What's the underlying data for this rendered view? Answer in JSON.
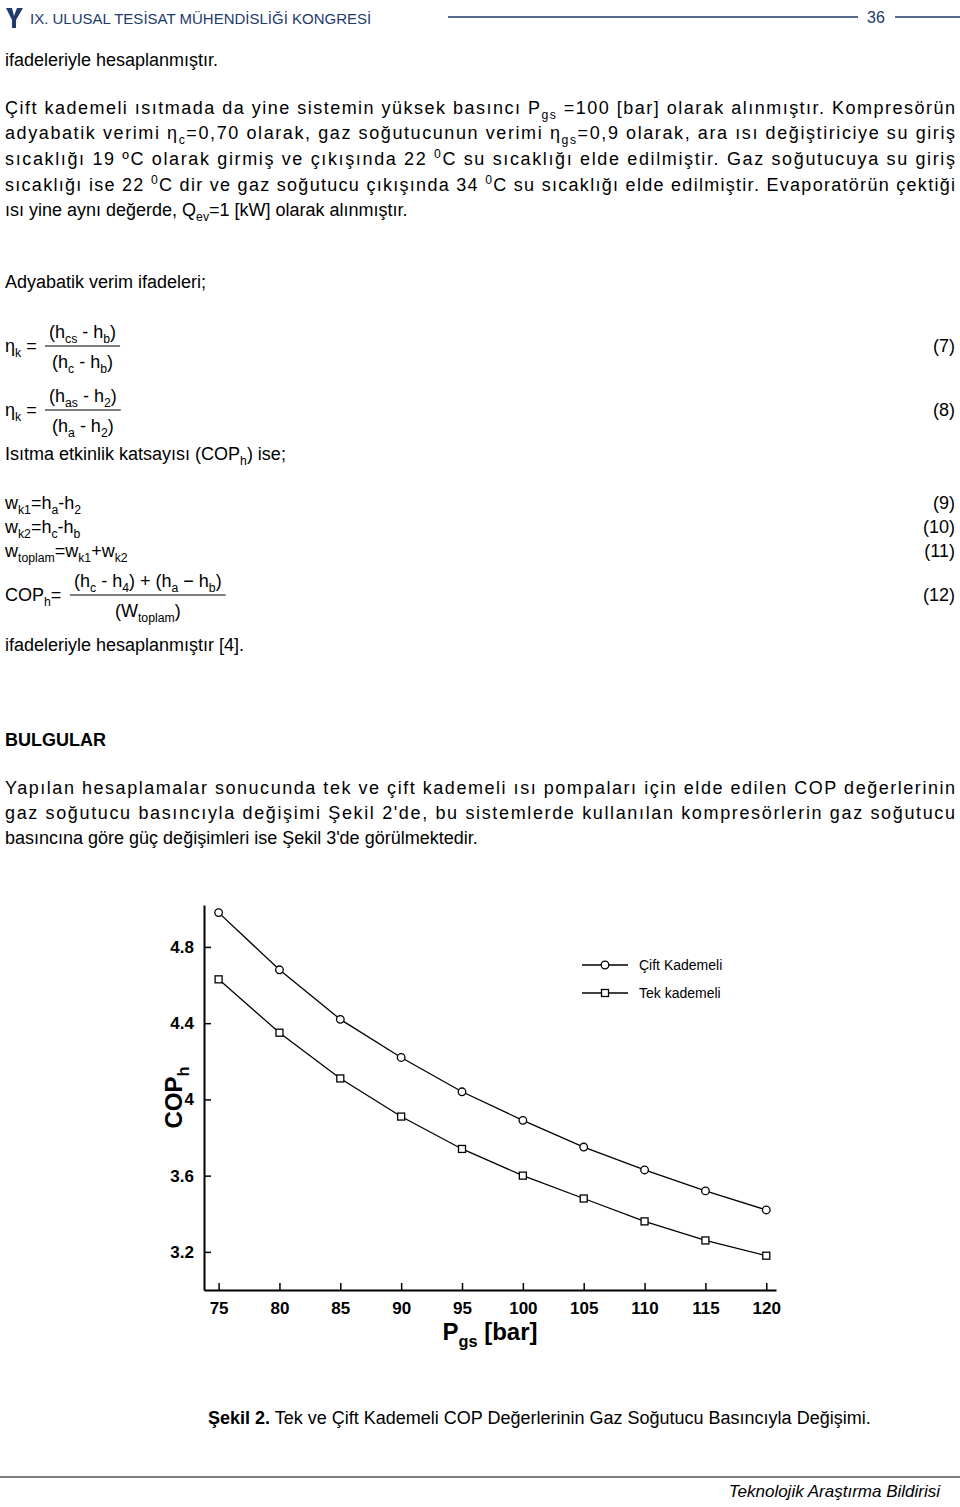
{
  "header": {
    "title": "IX. ULUSAL TESİSAT MÜHENDİSLİĞİ KONGRESİ",
    "page": "36"
  },
  "opening": [
    [
      "ifadeleriyle hesaplanmıştır."
    ]
  ],
  "paragraph": [
    [
      "Çift kademeli ısıtmada da yine sistemin yüksek basıncı P",
      {
        "sub": "gs"
      },
      " =100 [bar] olarak alınmıştır. Kompresörün"
    ],
    [
      "adyabatik verimi η",
      {
        "sub": "c"
      },
      "=0,70 olarak, gaz soğutucunun verimi η",
      {
        "sub": "gs"
      },
      "=0,9 olarak, ara ısı değiştiriciye su giriş"
    ],
    [
      "sıcaklığı 19 ºC olarak girmiş ve çıkışında 22 ",
      {
        "sup": "0"
      },
      "C su sıcaklığı elde edilmiştir. Gaz soğutucuya su giriş"
    ],
    [
      "sıcaklığı ise 22 ",
      {
        "sup": "0"
      },
      "C dir ve gaz soğutucu çıkışında 34 ",
      {
        "sup": "0"
      },
      "C su sıcaklığı elde edilmiştir. Evaporatörün çektiği"
    ],
    [
      "ısı yine aynı değerde, Q",
      {
        "sub": "ev"
      },
      "=1 [kW] olarak alınmıştır."
    ]
  ],
  "efficiency_intro": [
    [
      "Adyabatik verim ifadeleri;"
    ]
  ],
  "efficiency_equations": [
    {
      "lhs": [
        "η",
        {
          "sub": "k"
        },
        " ="
      ],
      "numerator": [
        "(h",
        {
          "sub": "cs"
        },
        " - h",
        {
          "sub": "b"
        },
        ")"
      ],
      "denominator": [
        "(h",
        {
          "sub": "c"
        },
        " - h",
        {
          "sub": "b"
        },
        ")"
      ],
      "number": "(7)"
    },
    {
      "lhs": [
        "η",
        {
          "sub": "k"
        },
        " ="
      ],
      "numerator": [
        "(h",
        {
          "sub": "as"
        },
        " - h",
        {
          "sub": "2"
        },
        ")"
      ],
      "denominator": [
        "(h",
        {
          "sub": "a"
        },
        " - h",
        {
          "sub": "2"
        },
        ")"
      ],
      "number": "(8)"
    }
  ],
  "cop_intro": [
    [
      "Isıtma etkinlik katsayısı (COP",
      {
        "sub": "h"
      },
      ") ise;"
    ]
  ],
  "work_equations": [
    {
      "expression": [
        "w",
        {
          "sub": "k1"
        },
        "=h",
        {
          "sub": "a"
        },
        "-h",
        {
          "sub": "2"
        }
      ],
      "number": "(9)"
    },
    {
      "expression": [
        "w",
        {
          "sub": "k2"
        },
        "=h",
        {
          "sub": "c"
        },
        "-h",
        {
          "sub": "b"
        }
      ],
      "number": "(10)"
    },
    {
      "expression": [
        "w",
        {
          "sub": "toplam"
        },
        "=w",
        {
          "sub": "k1"
        },
        "+w",
        {
          "sub": "k2"
        }
      ],
      "number": "(11)"
    }
  ],
  "cop_equation": {
    "lhs": [
      "COP",
      {
        "sub": "h"
      },
      "="
    ],
    "numerator": [
      "(h",
      {
        "sub": "c"
      },
      " - h",
      {
        "sub": "4"
      },
      ") + (h",
      {
        "sub": "a"
      },
      " − h",
      {
        "sub": "b"
      },
      ")"
    ],
    "denominator": [
      "(W",
      {
        "sub": "toplam"
      },
      ")"
    ],
    "number": "(12)"
  },
  "closing": [
    [
      "ifadeleriyle hesaplanmıştır [4]."
    ]
  ],
  "section_title": "BULGULAR",
  "findings": [
    [
      "Yapılan hesaplamalar sonucunda tek ve çift kademeli ısı pompaları için elde edilen COP değerlerinin"
    ],
    [
      "gaz soğutucu basıncıyla değişimi Şekil 2'de, bu sistemlerde kullanılan kompresörlerin gaz soğutucu"
    ],
    [
      "basıncına göre güç değişimleri ise Şekil 3'de görülmektedir."
    ]
  ],
  "chart_data": {
    "type": "line",
    "x_label": [
      "P",
      {
        "sub": "gs"
      },
      " [bar]"
    ],
    "y_label": [
      "COP",
      {
        "sub": "h"
      }
    ],
    "x": [
      75,
      80,
      85,
      90,
      95,
      100,
      105,
      110,
      115,
      120
    ],
    "xlim": [
      73.8,
      120.8
    ],
    "xticks": [
      75,
      80,
      85,
      90,
      95,
      100,
      105,
      110,
      115,
      120
    ],
    "ylim": [
      3.0,
      5.02
    ],
    "yticks": [
      3.2,
      3.6,
      4,
      4.4,
      4.8
    ],
    "legend": "upper right",
    "series": [
      {
        "name": "Çift Kademeli",
        "color": "#000000",
        "marker": "circle",
        "values": [
          4.98,
          4.68,
          4.42,
          4.22,
          4.04,
          3.89,
          3.75,
          3.63,
          3.52,
          3.42
        ]
      },
      {
        "name": "Tek kademeli",
        "color": "#000000",
        "marker": "square",
        "values": [
          4.63,
          4.35,
          4.11,
          3.91,
          3.74,
          3.6,
          3.48,
          3.36,
          3.26,
          3.18
        ]
      }
    ]
  },
  "caption": {
    "label": "Şekil 2.",
    "text": " Tek ve Çift Kademeli COP Değerlerinin Gaz Soğutucu Basıncıyla Değişimi."
  },
  "footer": "Teknolojik Araştırma Bildirisi"
}
